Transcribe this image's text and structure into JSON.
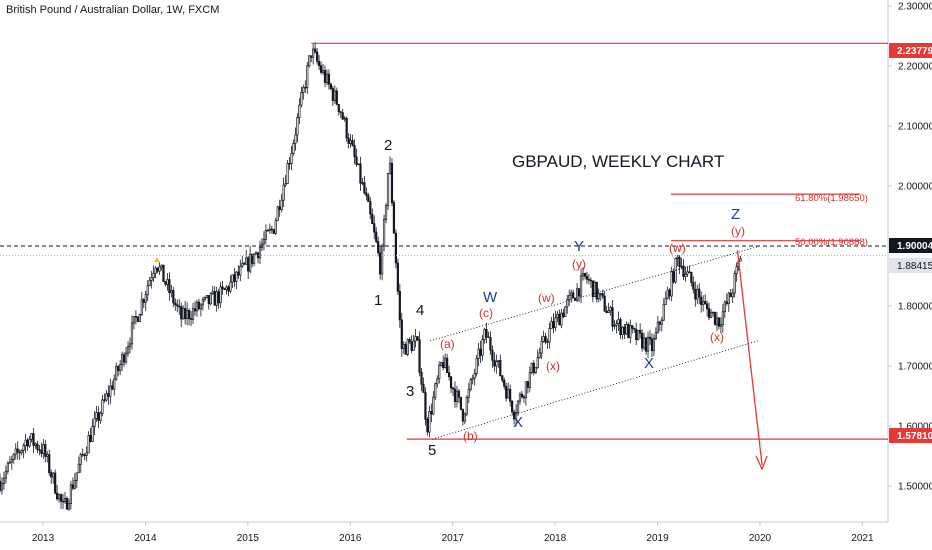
{
  "header": {
    "title": "British Pound / Australian Dollar, 1W, FXCM"
  },
  "annotation_title": "GBPAUD, WEEKLY CHART",
  "colors": {
    "candle": "#131722",
    "hline": "#e53935",
    "axis_text": "#131722",
    "wave_red": "#d32f2f",
    "wave_blue": "#1e3a9a",
    "marker": "#f5c518",
    "current_tag_bg": "#131722",
    "grey_tag_bg": "#e0e3eb"
  },
  "price_tags": {
    "high": "2.23779",
    "low": "1.57810",
    "current": "1.90004",
    "secondary": "1.88415"
  },
  "fib_levels": [
    {
      "label": "61.80%(1.98650)",
      "price": 1.9865
    },
    {
      "label": "50.00%(1.90888)",
      "price": 1.90888
    }
  ],
  "wave_labels": {
    "black": [
      "1",
      "2",
      "3",
      "4",
      "5"
    ],
    "blue": [
      "W",
      "Y",
      "X",
      "X",
      "Z"
    ],
    "red": [
      "(a)",
      "(b)",
      "(c)",
      "(w)",
      "(x)",
      "(y)",
      "(w)",
      "(x)",
      "(y)"
    ]
  },
  "chart_data": {
    "type": "candlestick",
    "symbol": "British Pound / Australian Dollar",
    "timeframe": "1W",
    "source": "FXCM",
    "x_ticks": [
      "2013",
      "2014",
      "2015",
      "2016",
      "2017",
      "2018",
      "2019",
      "2020",
      "2021"
    ],
    "y_ticks": [
      "2.30000",
      "2.20000",
      "2.10000",
      "2.00000",
      "1.90000",
      "1.80000",
      "1.70000",
      "1.60000",
      "1.50000"
    ],
    "ylim": [
      1.44,
      2.31
    ],
    "xlim": [
      2012.58,
      2021.25
    ],
    "grid": false,
    "horizontal_levels": [
      {
        "price": 2.23779,
        "from": 2015.62,
        "to": 2021.25
      },
      {
        "price": 1.5781,
        "from": 2016.55,
        "to": 2021.25
      }
    ],
    "dashed_level": 1.90004,
    "dotted_level": 1.88415,
    "channel_upper": [
      [
        2016.78,
        1.742
      ],
      [
        2019.98,
        1.899
      ]
    ],
    "channel_lower": [
      [
        2016.8,
        1.578
      ],
      [
        2019.98,
        1.742
      ]
    ],
    "projection": [
      [
        2019.78,
        1.893
      ],
      [
        2020.02,
        1.535
      ]
    ],
    "anchor_points": [
      [
        2012.58,
        1.508
      ],
      [
        2012.85,
        1.58
      ],
      [
        2013.0,
        1.56
      ],
      [
        2013.2,
        1.46
      ],
      [
        2013.45,
        1.58
      ],
      [
        2013.75,
        1.7
      ],
      [
        2014.1,
        1.875
      ],
      [
        2014.35,
        1.78
      ],
      [
        2014.75,
        1.82
      ],
      [
        2015.0,
        1.87
      ],
      [
        2015.25,
        1.93
      ],
      [
        2015.45,
        2.08
      ],
      [
        2015.62,
        2.225
      ],
      [
        2015.9,
        2.13
      ],
      [
        2016.15,
        1.98
      ],
      [
        2016.25,
        1.905
      ],
      [
        2016.3,
        1.86
      ],
      [
        2016.38,
        2.05
      ],
      [
        2016.5,
        1.73
      ],
      [
        2016.65,
        1.74
      ],
      [
        2016.75,
        1.6
      ],
      [
        2016.9,
        1.71
      ],
      [
        2017.1,
        1.62
      ],
      [
        2017.32,
        1.755
      ],
      [
        2017.6,
        1.625
      ],
      [
        2017.95,
        1.76
      ],
      [
        2018.3,
        1.848
      ],
      [
        2018.6,
        1.77
      ],
      [
        2018.95,
        1.73
      ],
      [
        2019.2,
        1.88
      ],
      [
        2019.45,
        1.8
      ],
      [
        2019.6,
        1.775
      ],
      [
        2019.72,
        1.82
      ],
      [
        2019.82,
        1.89
      ]
    ]
  }
}
